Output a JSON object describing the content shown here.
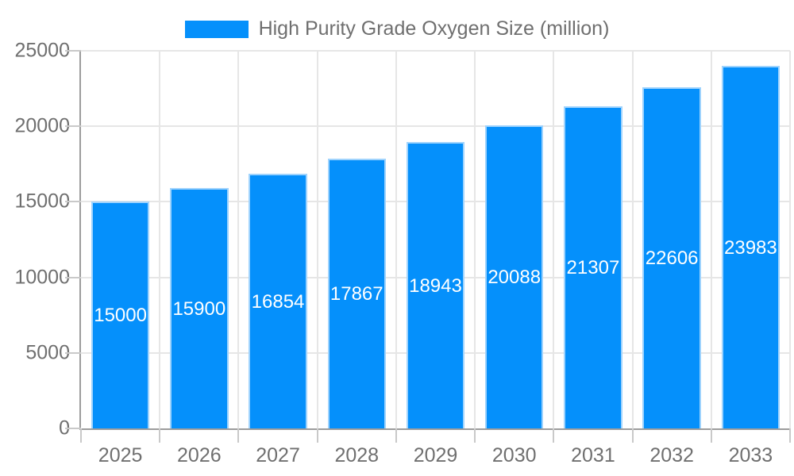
{
  "chart_data": {
    "type": "bar",
    "title": "High Purity Grade Oxygen Size (million)",
    "series_name": "High Purity Grade Oxygen Size (million)",
    "categories": [
      "2025",
      "2026",
      "2027",
      "2028",
      "2029",
      "2030",
      "2031",
      "2032",
      "2033"
    ],
    "values": [
      15000,
      15900,
      16854,
      17867,
      18943,
      20088,
      21307,
      22606,
      23983
    ],
    "xlabel": "",
    "ylabel": "",
    "ylim": [
      0,
      25000
    ],
    "yticks": [
      0,
      5000,
      10000,
      15000,
      20000,
      25000
    ],
    "grid": true,
    "legend_position": "top",
    "colors": {
      "bar": "#0590fb",
      "bar_border": "#9fd3fd",
      "grid": "#e6e6e6",
      "axis": "#9c9c9c",
      "tick": "#c9c9c9",
      "text": "#6f6f6f",
      "value_text": "#ffffff"
    }
  }
}
